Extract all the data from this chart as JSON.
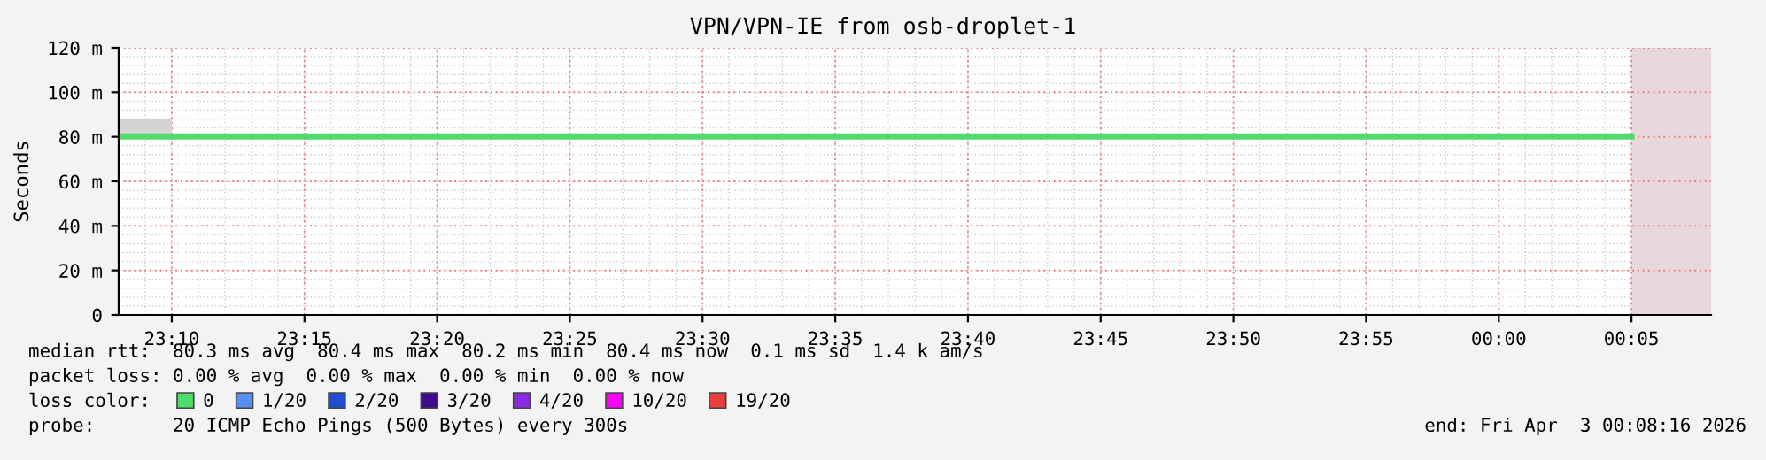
{
  "chart_data": {
    "type": "line",
    "title": "VPN/VPN-IE from osb-droplet-1",
    "ylabel": "Seconds",
    "x": [
      "2026-04-02T23:08",
      "2026-04-02T23:10",
      "2026-04-02T23:15",
      "2026-04-02T23:20",
      "2026-04-02T23:25",
      "2026-04-02T23:30",
      "2026-04-02T23:35",
      "2026-04-02T23:40",
      "2026-04-02T23:45",
      "2026-04-02T23:50",
      "2026-04-02T23:55",
      "2026-04-03T00:00",
      "2026-04-03T00:05"
    ],
    "series": [
      {
        "name": "0",
        "color": "#4fdc6a",
        "values": [
          80.2,
          80.2,
          80.2,
          80.2,
          80.2,
          80.2,
          80.2,
          80.2,
          80.2,
          80.2,
          80.2,
          80.2,
          80.2
        ],
        "lower": [
          80,
          80,
          null,
          null,
          null,
          null,
          null,
          null,
          null,
          null,
          null,
          null,
          null
        ],
        "upper": [
          88,
          88,
          null,
          null,
          null,
          null,
          null,
          null,
          null,
          null,
          null,
          null,
          null
        ]
      },
      {
        "name": "1/20",
        "color": "#5a8ef0",
        "values": [
          null,
          null,
          null,
          null,
          null,
          null,
          null,
          null,
          null,
          null,
          null,
          null,
          null
        ]
      },
      {
        "name": "2/20",
        "color": "#1f4fd0",
        "values": [
          null,
          null,
          null,
          null,
          null,
          null,
          null,
          null,
          null,
          null,
          null,
          null,
          null
        ]
      },
      {
        "name": "3/20",
        "color": "#3c0d8c",
        "values": [
          null,
          null,
          null,
          null,
          null,
          null,
          null,
          null,
          null,
          null,
          null,
          null,
          null
        ]
      },
      {
        "name": "4/20",
        "color": "#8a2be2",
        "values": [
          null,
          null,
          null,
          null,
          null,
          null,
          null,
          null,
          null,
          null,
          null,
          null,
          null
        ]
      },
      {
        "name": "10/20",
        "color": "#ff00ff",
        "values": [
          null,
          null,
          null,
          null,
          null,
          null,
          null,
          null,
          null,
          null,
          null,
          null,
          null
        ]
      },
      {
        "name": "19/20",
        "color": "#e8413c",
        "values": [
          null,
          null,
          null,
          null,
          null,
          null,
          null,
          null,
          null,
          null,
          null,
          null,
          null
        ]
      }
    ],
    "legend_title": "loss color:",
    "legend": "bottom left",
    "xlim": [
      "2026-04-02T23:08",
      "2026-04-03T00:08"
    ],
    "xticks": [
      {
        "value": "2026-04-02T23:10",
        "label": "23:10"
      },
      {
        "value": "2026-04-02T23:15",
        "label": "23:15"
      },
      {
        "value": "2026-04-02T23:20",
        "label": "23:20"
      },
      {
        "value": "2026-04-02T23:25",
        "label": "23:25"
      },
      {
        "value": "2026-04-02T23:30",
        "label": "23:30"
      },
      {
        "value": "2026-04-02T23:35",
        "label": "23:35"
      },
      {
        "value": "2026-04-02T23:40",
        "label": "23:40"
      },
      {
        "value": "2026-04-02T23:45",
        "label": "23:45"
      },
      {
        "value": "2026-04-02T23:50",
        "label": "23:50"
      },
      {
        "value": "2026-04-02T23:55",
        "label": "23:55"
      },
      {
        "value": "2026-04-03T00:00",
        "label": "00:00"
      },
      {
        "value": "2026-04-03T00:05",
        "label": "00:05"
      }
    ],
    "ylim": [
      0,
      120
    ],
    "yticks": [
      0,
      {
        "value": 20,
        "label": "20 m"
      },
      {
        "value": 40,
        "label": "40 m"
      },
      {
        "value": 60,
        "label": "60 m"
      },
      {
        "value": 80,
        "label": "80 m"
      },
      {
        "value": 100,
        "label": "100 m"
      },
      {
        "value": 120,
        "label": "120 m"
      }
    ],
    "grid": true,
    "bands": [
      {
        "axis": "x",
        "from": "2026-04-03T00:05",
        "to": "2026-04-03T00:08",
        "color": "#e8d8dc"
      }
    ],
    "annotations": [
      "median rtt:  80.3 ms avg  80.4 ms max  80.2 ms min  80.4 ms now  0.1 ms sd  1.4 k am/s",
      "packet loss: 0.00 % avg  0.00 % max  0.00 % min  0.00 % now",
      "probe:       20 ICMP Echo Pings (500 Bytes) every 300s",
      "end: Fri Apr  3 00:08:16 2026"
    ]
  }
}
